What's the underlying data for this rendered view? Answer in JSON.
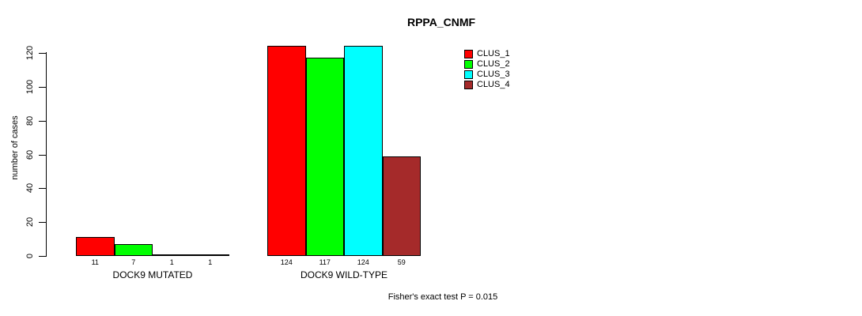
{
  "chart_data": {
    "type": "bar",
    "title": "RPPA_CNMF",
    "xlabel": "",
    "ylabel": "number of cases",
    "ylim": [
      0,
      120
    ],
    "yticks": [
      0,
      20,
      40,
      60,
      80,
      100,
      120
    ],
    "grid": false,
    "legend_position": "top-right",
    "bar_value_labels": true,
    "categories": [
      "DOCK9 MUTATED",
      "DOCK9 WILD-TYPE"
    ],
    "series": [
      {
        "name": "CLUS_1",
        "color": "#FF0000",
        "values": [
          11,
          124
        ]
      },
      {
        "name": "CLUS_2",
        "color": "#00FF00",
        "values": [
          7,
          117
        ]
      },
      {
        "name": "CLUS_3",
        "color": "#00FFFF",
        "values": [
          1,
          124
        ]
      },
      {
        "name": "CLUS_4",
        "color": "#A52A2A",
        "values": [
          1,
          59
        ]
      }
    ],
    "annotation": "Fisher's exact test P = 0.015"
  },
  "colors": {
    "background": "#FFFFFF",
    "axis": "#000000",
    "bar_border": "#000000",
    "text": "#000000"
  }
}
